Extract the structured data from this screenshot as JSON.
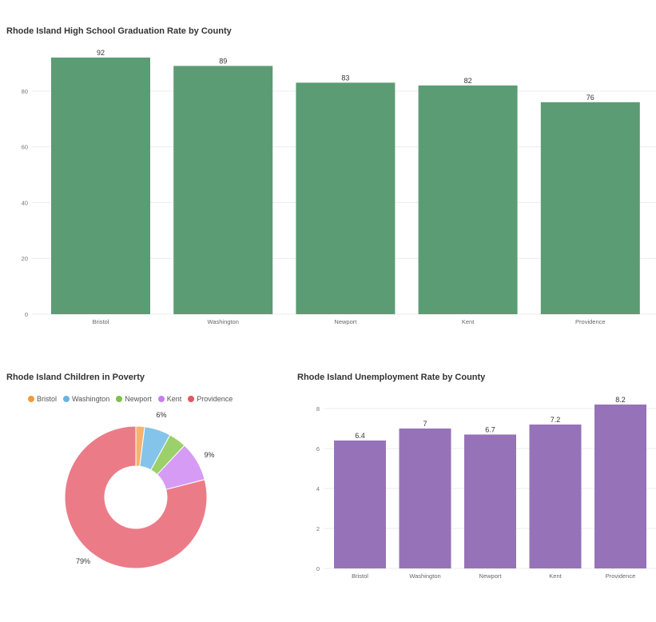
{
  "chart_data": [
    {
      "type": "bar",
      "title": "Rhode Island High School Graduation Rate by County",
      "categories": [
        "Bristol",
        "Washington",
        "Newport",
        "Kent",
        "Providence"
      ],
      "values": [
        92,
        89,
        83,
        82,
        76
      ],
      "value_labels": [
        "92",
        "89",
        "83",
        "82",
        "76"
      ],
      "yticks": [
        0,
        20,
        40,
        60,
        80
      ],
      "ylim": [
        0,
        92
      ],
      "grid": true,
      "color": "#5c9c74"
    },
    {
      "type": "pie",
      "title": "Rhode Island Children in Poverty",
      "categories": [
        "Bristol",
        "Washington",
        "Newport",
        "Kent",
        "Providence"
      ],
      "values": [
        2,
        6,
        4,
        9,
        79
      ],
      "colors": [
        "#f29a3d",
        "#69b3e0",
        "#7dc04b",
        "#c77ef0",
        "#e8545e"
      ],
      "slice_colors": [
        "#f6b36f",
        "#85c4ea",
        "#9bd06b",
        "#d69bf5",
        "#ec7b88"
      ],
      "visible_labels": [
        "6%",
        "9%",
        "79%"
      ],
      "legend_position": "top"
    },
    {
      "type": "bar",
      "title": "Rhode Island Unemployment Rate by County",
      "categories": [
        "Bristol",
        "Washington",
        "Newport",
        "Kent",
        "Providence"
      ],
      "values": [
        6.4,
        7,
        6.7,
        7.2,
        8.2
      ],
      "value_labels": [
        "6.4",
        "7",
        "6.7",
        "7.2",
        "8.2"
      ],
      "yticks": [
        0,
        2,
        4,
        6,
        8
      ],
      "ylim": [
        0,
        8.2
      ],
      "grid": true,
      "color": "#9673b8"
    }
  ]
}
